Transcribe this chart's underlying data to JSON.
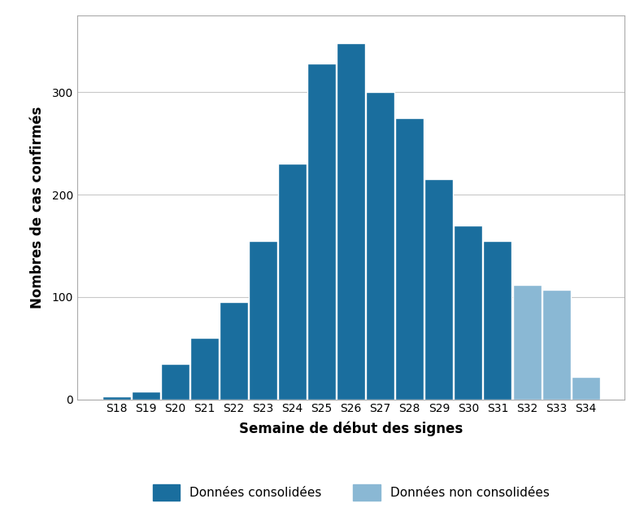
{
  "categories": [
    "S18",
    "S19",
    "S20",
    "S21",
    "S22",
    "S23",
    "S24",
    "S25",
    "S26",
    "S27",
    "S28",
    "S29",
    "S30",
    "S31",
    "S32",
    "S33",
    "S34"
  ],
  "values": [
    3,
    8,
    35,
    60,
    95,
    155,
    230,
    328,
    348,
    300,
    275,
    215,
    170,
    155,
    112,
    107,
    22
  ],
  "consolidated": [
    true,
    true,
    true,
    true,
    true,
    true,
    true,
    true,
    true,
    true,
    true,
    true,
    true,
    true,
    false,
    false,
    false
  ],
  "color_consolidated": "#1a6e9e",
  "color_non_consolidated": "#8ab8d4",
  "xlabel": "Semaine de début des signes",
  "ylabel": "Nombres de cas confirmés",
  "ylim": [
    0,
    375
  ],
  "yticks": [
    0,
    100,
    200,
    300
  ],
  "legend_label_consolidated": "Données consolidées",
  "legend_label_non_consolidated": "Données non consolidées",
  "background_color": "#ffffff",
  "plot_bg_color": "#ffffff",
  "grid_color": "#c8c8c8",
  "bar_edge_color": "#ffffff",
  "bar_linewidth": 1.0,
  "bar_width": 0.97,
  "axis_label_fontsize": 12,
  "tick_fontsize": 10,
  "legend_fontsize": 11,
  "spine_color": "#aaaaaa"
}
